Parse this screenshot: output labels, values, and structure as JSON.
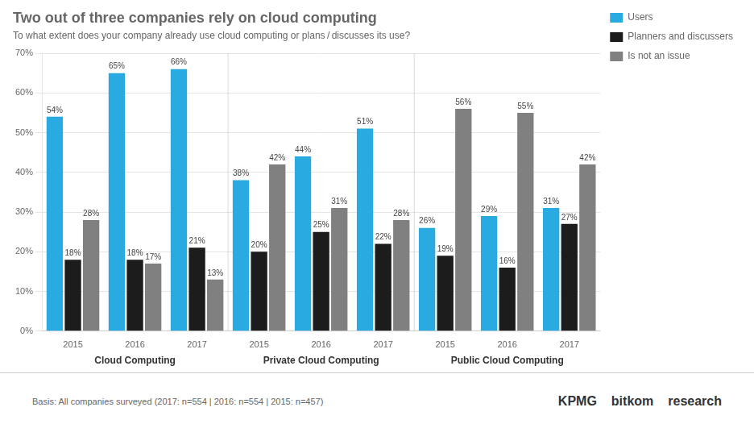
{
  "chart_data": {
    "type": "bar",
    "title": "Two out of three companies rely on cloud computing",
    "subtitle": "To what extent does your company already use cloud computing or plans / discusses its use?",
    "footnote": "Basis: All companies surveyed (2017: n=554 | 2016: n=554 | 2015: n=457)",
    "annotations": [
      "KPMG",
      "bitkom",
      "research"
    ],
    "categories": [
      "2015",
      "2016",
      "2017",
      "2015",
      "2016",
      "2017",
      "2015",
      "2016",
      "2017"
    ],
    "groups": [
      "Cloud Computing",
      "Private Cloud Computing",
      "Public Cloud Computing"
    ],
    "series": [
      {
        "name": "Users",
        "color": "#29ABE2",
        "values": [
          54,
          65,
          66,
          38,
          44,
          51,
          26,
          29,
          31
        ],
        "value_labels": [
          "54%",
          "65%",
          "66%",
          "38%",
          "44%",
          "51%",
          "26%",
          "29%",
          "31%"
        ]
      },
      {
        "name": "Planners and discussers",
        "color": "#1C1C1C",
        "values": [
          18,
          18,
          21,
          20,
          25,
          22,
          19,
          16,
          27
        ],
        "value_labels": [
          "18%",
          "18%",
          "21%",
          "20%",
          "25%",
          "22%",
          "19%",
          "16%",
          "27%"
        ]
      },
      {
        "name": "Is not an issue",
        "color": "#808080",
        "values": [
          28,
          17,
          13,
          42,
          31,
          28,
          56,
          55,
          42
        ],
        "value_labels": [
          "28%",
          "17%",
          "13%",
          "42%",
          "31%",
          "28%",
          "56%",
          "55%",
          "42%"
        ]
      }
    ],
    "ylim": [
      0,
      70
    ],
    "yticks": [
      {
        "value": 0,
        "label": "0%"
      },
      {
        "value": 10,
        "label": "10%"
      },
      {
        "value": 20,
        "label": "20%"
      },
      {
        "value": 30,
        "label": "30%"
      },
      {
        "value": 40,
        "label": "40%"
      },
      {
        "value": 50,
        "label": "50%"
      },
      {
        "value": 60,
        "label": "60%"
      },
      {
        "value": 70,
        "label": "70%"
      }
    ],
    "grid": true,
    "legend": "right",
    "data_labels": true
  }
}
